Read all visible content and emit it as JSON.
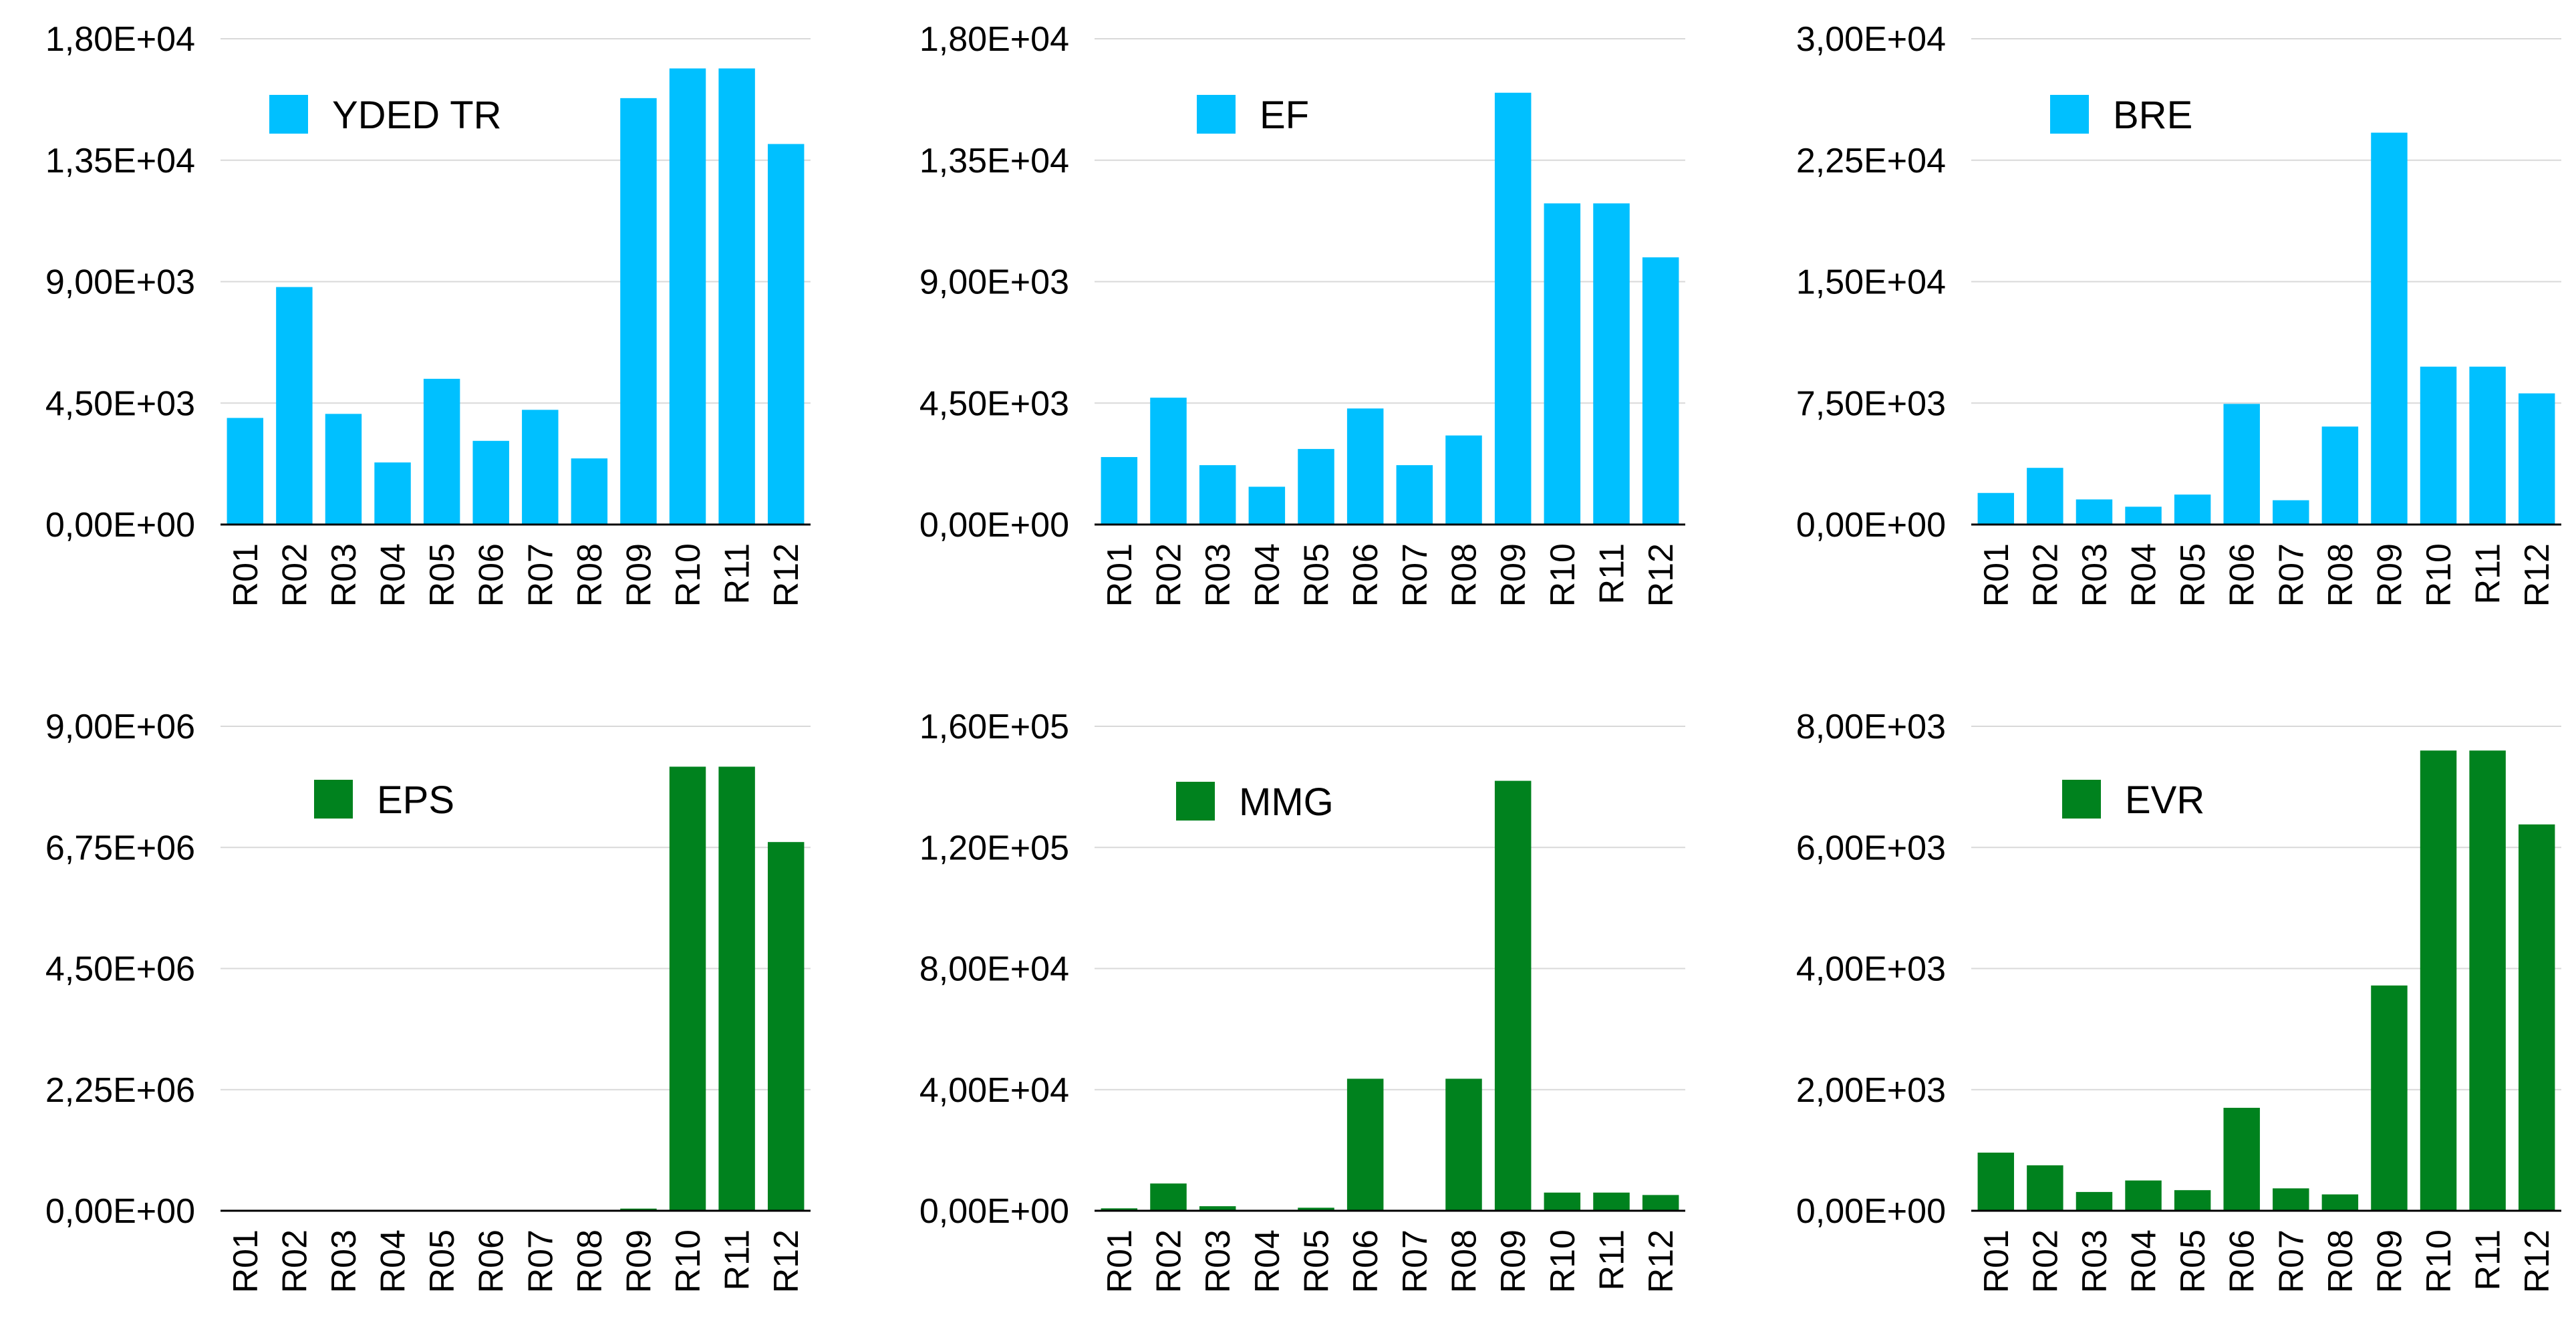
{
  "chart_data": [
    {
      "type": "bar",
      "categories": [
        "R01",
        "R02",
        "R03",
        "R04",
        "R05",
        "R06",
        "R07",
        "R08",
        "R09",
        "R10",
        "R11",
        "R12"
      ],
      "series": [
        {
          "name": "YDED TR",
          "values": [
            3950,
            8800,
            4100,
            2300,
            5400,
            3100,
            4250,
            2450,
            15800,
            16900,
            16900,
            14100
          ]
        }
      ],
      "ylim": [
        0,
        18000
      ],
      "yticks": [
        "0,00E+00",
        "4,50E+03",
        "9,00E+03",
        "1,35E+04",
        "1,80E+04"
      ],
      "color": "#00c0ff",
      "legend": "top-left"
    },
    {
      "type": "bar",
      "categories": [
        "R01",
        "R02",
        "R03",
        "R04",
        "R05",
        "R06",
        "R07",
        "R08",
        "R09",
        "R10",
        "R11",
        "R12"
      ],
      "series": [
        {
          "name": "EF",
          "values": [
            2500,
            4700,
            2200,
            1400,
            2800,
            4300,
            2200,
            3300,
            16000,
            11900,
            11900,
            9900
          ]
        }
      ],
      "ylim": [
        0,
        18000
      ],
      "yticks": [
        "0,00E+00",
        "4,50E+03",
        "9,00E+03",
        "1,35E+04",
        "1,80E+04"
      ],
      "color": "#00c0ff",
      "legend": "top-center"
    },
    {
      "type": "bar",
      "categories": [
        "R01",
        "R02",
        "R03",
        "R04",
        "R05",
        "R06",
        "R07",
        "R08",
        "R09",
        "R10",
        "R11",
        "R12"
      ],
      "series": [
        {
          "name": "BRE",
          "values": [
            1950,
            3500,
            1550,
            1100,
            1850,
            7450,
            1500,
            6050,
            24200,
            9750,
            9750,
            8100
          ]
        }
      ],
      "ylim": [
        0,
        30000
      ],
      "yticks": [
        "0,00E+00",
        "7,50E+03",
        "1,50E+04",
        "2,25E+04",
        "3,00E+04"
      ],
      "color": "#00c0ff",
      "legend": "top-center"
    },
    {
      "type": "bar",
      "categories": [
        "R01",
        "R02",
        "R03",
        "R04",
        "R05",
        "R06",
        "R07",
        "R08",
        "R09",
        "R10",
        "R11",
        "R12"
      ],
      "series": [
        {
          "name": "EPS",
          "values": [
            5000,
            5000,
            5000,
            5000,
            5000,
            5000,
            5000,
            5000,
            40000,
            8250000,
            8250000,
            6850000
          ]
        }
      ],
      "ylim": [
        0,
        9000000
      ],
      "yticks": [
        "0,00E+00",
        "2,25E+06",
        "4,50E+06",
        "6,75E+06",
        "9,00E+06"
      ],
      "color": "#00821e",
      "legend": "top-left"
    },
    {
      "type": "bar",
      "categories": [
        "R01",
        "R02",
        "R03",
        "R04",
        "R05",
        "R06",
        "R07",
        "R08",
        "R09",
        "R10",
        "R11",
        "R12"
      ],
      "series": [
        {
          "name": "MMG",
          "values": [
            800,
            9000,
            1500,
            300,
            1000,
            43600,
            300,
            43600,
            142000,
            6000,
            6000,
            5200
          ]
        }
      ],
      "ylim": [
        0,
        160000
      ],
      "yticks": [
        "0,00E+00",
        "4,00E+04",
        "8,00E+04",
        "1,20E+05",
        "1,60E+05"
      ],
      "color": "#00821e",
      "legend": "top-center"
    },
    {
      "type": "bar",
      "categories": [
        "R01",
        "R02",
        "R03",
        "R04",
        "R05",
        "R06",
        "R07",
        "R08",
        "R09",
        "R10",
        "R11",
        "R12"
      ],
      "series": [
        {
          "name": "EVR",
          "values": [
            960,
            750,
            310,
            500,
            340,
            1700,
            370,
            270,
            3720,
            7600,
            7600,
            6380
          ]
        }
      ],
      "ylim": [
        0,
        8000
      ],
      "yticks": [
        "0,00E+00",
        "2,00E+03",
        "4,00E+03",
        "6,00E+03",
        "8,00E+03"
      ],
      "color": "#00821e",
      "legend": "top-center"
    }
  ]
}
